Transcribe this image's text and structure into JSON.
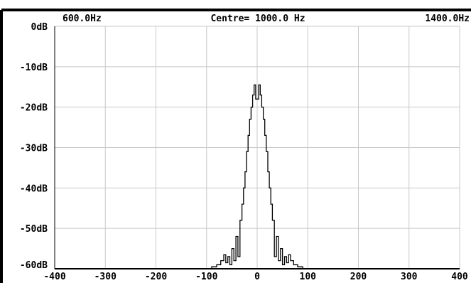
{
  "header": {
    "left_label": "600.0Hz",
    "centre_label": "Centre= 1000.0 Hz",
    "right_label": "1400.0Hz"
  },
  "chart_data": {
    "type": "line",
    "title": "",
    "xlabel": "",
    "ylabel": "",
    "xlim": [
      -400,
      400
    ],
    "ylim": [
      -60,
      0
    ],
    "grid": true,
    "x_ticks": [
      -400,
      -300,
      -200,
      -100,
      0,
      100,
      200,
      300,
      400
    ],
    "x_tick_labels": [
      "-400",
      "-300",
      "-200",
      "-100",
      "0",
      "100",
      "200",
      "300",
      "400"
    ],
    "y_ticks": [
      0,
      -10,
      -20,
      -30,
      -40,
      -50,
      -60
    ],
    "y_tick_labels": [
      "0dB",
      "-10dB",
      "-20dB",
      "-30dB",
      "-40dB",
      "-50dB",
      "-60dB"
    ],
    "colors": {
      "line": "#000000",
      "grid": "#c8c8c8",
      "axes": "#000000",
      "background": "#ffffff"
    },
    "series": [
      {
        "x": [
          -400,
          -90,
          -90,
          -80,
          -80,
          -72,
          -72,
          -66,
          -66,
          -62,
          -62,
          -58,
          -58,
          -54,
          -54,
          -50,
          -50,
          -46,
          -46,
          -42,
          -42,
          -38,
          -38,
          -34,
          -34,
          -30,
          -30,
          -27,
          -27,
          -24,
          -24,
          -21,
          -21,
          -18,
          -18,
          -15,
          -15,
          -12,
          -12,
          -9,
          -9,
          -6,
          -6,
          -3,
          -3,
          3,
          3,
          6,
          6,
          9,
          9,
          12,
          12,
          15,
          15,
          18,
          18,
          21,
          21,
          24,
          24,
          27,
          27,
          30,
          30,
          34,
          34,
          38,
          38,
          42,
          42,
          46,
          46,
          50,
          50,
          54,
          54,
          58,
          58,
          62,
          62,
          66,
          66,
          72,
          72,
          80,
          80,
          90,
          90,
          400
        ],
        "y": [
          -60,
          -60,
          -59.5,
          -59.5,
          -59,
          -59,
          -58,
          -58,
          -56.5,
          -56.5,
          -58.5,
          -58.5,
          -57,
          -57,
          -59,
          -59,
          -55,
          -55,
          -58,
          -58,
          -52,
          -52,
          -57,
          -57,
          -48,
          -48,
          -44,
          -44,
          -40,
          -40,
          -36,
          -36,
          -31,
          -31,
          -27,
          -27,
          -23,
          -23,
          -20,
          -20,
          -17,
          -17,
          -14.5,
          -14.5,
          -18,
          -18,
          -14.5,
          -14.5,
          -17,
          -17,
          -20,
          -20,
          -23,
          -23,
          -27,
          -27,
          -31,
          -31,
          -36,
          -36,
          -40,
          -40,
          -44,
          -44,
          -48,
          -48,
          -57,
          -57,
          -52,
          -52,
          -58,
          -58,
          -55,
          -55,
          -59,
          -59,
          -57,
          -57,
          -58.5,
          -58.5,
          -56.5,
          -56.5,
          -58,
          -58,
          -59,
          -59,
          -59.5,
          -59.5,
          -60,
          -60
        ]
      }
    ]
  }
}
